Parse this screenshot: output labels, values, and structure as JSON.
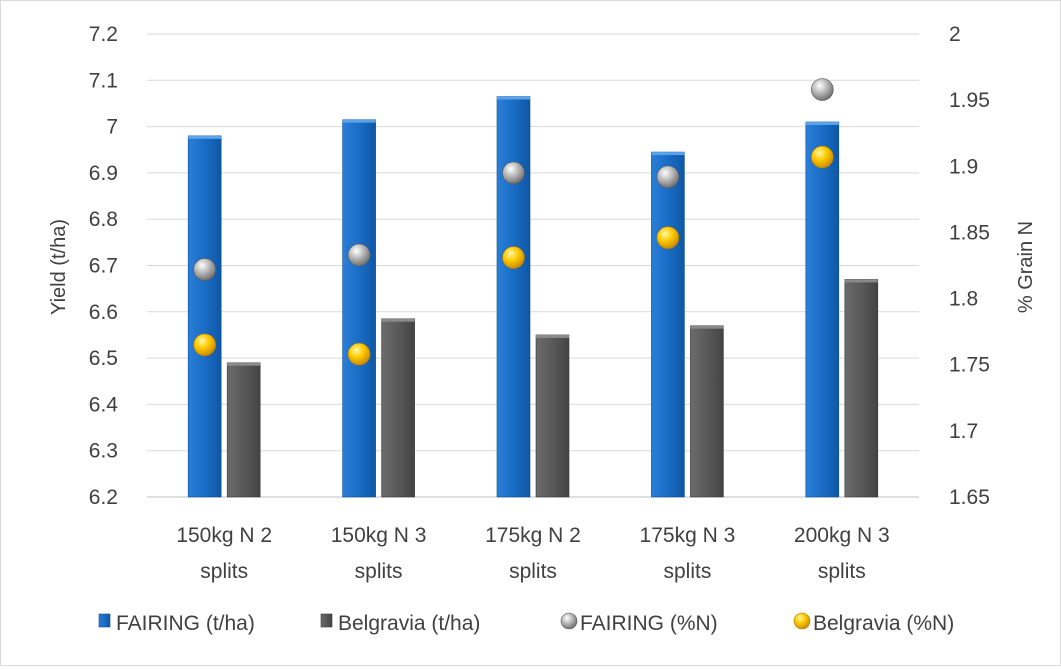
{
  "chart_data": {
    "type": "bar",
    "categories": [
      "150kg N 2 splits",
      "150kg N 3 splits",
      "175kg N 2 splits",
      "175kg N 3 splits",
      "200kg N 3 splits"
    ],
    "category_lines": [
      [
        "150kg N 2",
        "splits"
      ],
      [
        "150kg N 3",
        "splits"
      ],
      [
        "175kg N 2",
        "splits"
      ],
      [
        "175kg N 3",
        "splits"
      ],
      [
        "200kg N 3",
        "splits"
      ]
    ],
    "left_axis": {
      "label": "Yield (t/ha)",
      "ylim": [
        6.2,
        7.2
      ],
      "ticks": [
        6.2,
        6.3,
        6.4,
        6.5,
        6.6,
        6.7,
        6.8,
        6.9,
        7,
        7.1,
        7.2
      ],
      "tick_labels": [
        "6.2",
        "6.3",
        "6.4",
        "6.5",
        "6.6",
        "6.7",
        "6.8",
        "6.9",
        "7",
        "7.1",
        "7.2"
      ]
    },
    "right_axis": {
      "label": "% Grain N",
      "ylim": [
        1.65,
        2.0
      ],
      "ticks": [
        1.65,
        1.7,
        1.75,
        1.8,
        1.85,
        1.9,
        1.95,
        2.0
      ],
      "tick_labels": [
        "1.65",
        "1.7",
        "1.75",
        "1.8",
        "1.85",
        "1.9",
        "1.95",
        "2"
      ]
    },
    "series": [
      {
        "name": "FAIRING (t/ha)",
        "kind": "bar",
        "axis": "left",
        "color": "#1f6fc5",
        "values": [
          6.98,
          7.015,
          7.065,
          6.945,
          7.01
        ]
      },
      {
        "name": "Belgravia (t/ha)",
        "kind": "bar",
        "axis": "left",
        "color": "#595959",
        "values": [
          6.49,
          6.585,
          6.55,
          6.57,
          6.67
        ]
      },
      {
        "name": "FAIRING (%N)",
        "kind": "marker",
        "axis": "right",
        "color": "#a6a6a6",
        "values": [
          1.822,
          1.833,
          1.895,
          1.892,
          1.958
        ]
      },
      {
        "name": "Belgravia (%N)",
        "kind": "marker",
        "axis": "right",
        "color": "#ffc000",
        "values": [
          1.765,
          1.758,
          1.831,
          1.846,
          1.907
        ]
      }
    ],
    "grid": true,
    "legend_position": "bottom"
  }
}
